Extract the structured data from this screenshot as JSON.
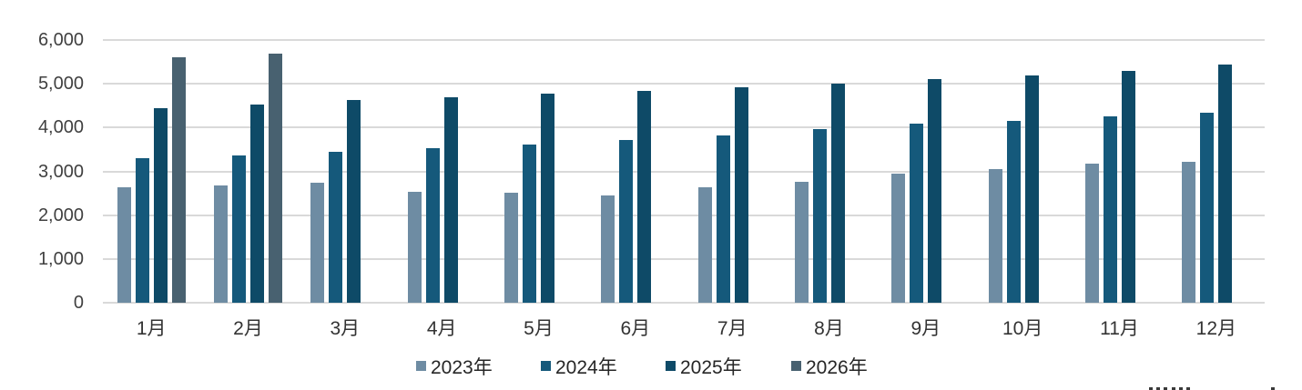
{
  "chart_data": {
    "type": "bar",
    "title": "",
    "xlabel": "",
    "ylabel": "",
    "categories": [
      "1月",
      "2月",
      "3月",
      "4月",
      "5月",
      "6月",
      "7月",
      "8月",
      "9月",
      "10月",
      "11月",
      "12月"
    ],
    "series": [
      {
        "name": "2023年",
        "color": "#6e8ca3",
        "values": [
          2630,
          2680,
          2740,
          2530,
          2520,
          2460,
          2640,
          2760,
          2950,
          3060,
          3170,
          3220
        ]
      },
      {
        "name": "2024年",
        "color": "#15597b",
        "values": [
          3310,
          3360,
          3440,
          3530,
          3610,
          3720,
          3830,
          3960,
          4080,
          4160,
          4250,
          4340
        ]
      },
      {
        "name": "2025年",
        "color": "#0e4a67",
        "values": [
          4450,
          4520,
          4630,
          4690,
          4770,
          4840,
          4930,
          5010,
          5100,
          5200,
          5300,
          5450
        ]
      },
      {
        "name": "2026年",
        "color": "#486170",
        "values": [
          5600,
          5690,
          null,
          null,
          null,
          null,
          null,
          null,
          null,
          null,
          null,
          null
        ]
      }
    ],
    "ylim": [
      0,
      6000
    ],
    "y_tick_step": 1000,
    "y_tick_labels": [
      "0",
      "1,000",
      "2,000",
      "3,000",
      "4,000",
      "5,000",
      "6,000"
    ],
    "grid": true,
    "legend_position": "bottom"
  },
  "styles": {
    "background": "#ffffff",
    "gridline_color": "#d9d9d9",
    "y_tick_label_color": "#404040",
    "category_label_color": "#333333",
    "legend_text_color": "#262626"
  },
  "footnote": {
    "text_clipped_at_bottom_edge": true
  }
}
